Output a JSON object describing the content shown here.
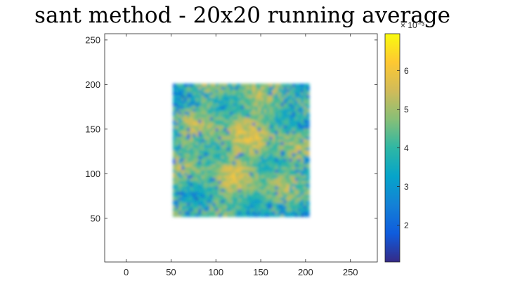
{
  "chart_data": {
    "type": "heatmap",
    "title": "sant method - 20x20 running average",
    "xlabel": "",
    "ylabel": "",
    "xlim": [
      -24,
      280
    ],
    "ylim": [
      1,
      257
    ],
    "x_ticks": [
      0,
      50,
      100,
      150,
      200,
      250
    ],
    "y_ticks": [
      50,
      100,
      150,
      200,
      250
    ],
    "grid": false,
    "data_region": {
      "x": [
        52,
        204
      ],
      "y": [
        52,
        201
      ]
    },
    "colorbar": {
      "location": "right",
      "range": [
        1.05,
        6.95
      ],
      "ticks": [
        2,
        3,
        4,
        5,
        6
      ],
      "exponent_label": "× 10⁻³",
      "colormap": "parula",
      "stops": [
        "#352a87",
        "#0f5cdd",
        "#1481d6",
        "#06a4ca",
        "#2eb7a4",
        "#87bf77",
        "#d1bb59",
        "#fec832",
        "#f9fb0e"
      ]
    },
    "summary": "noisy square field mostly 3.5–5, with yellow (~5.5–6) patches near center and blue (~2) speckles along edges"
  }
}
